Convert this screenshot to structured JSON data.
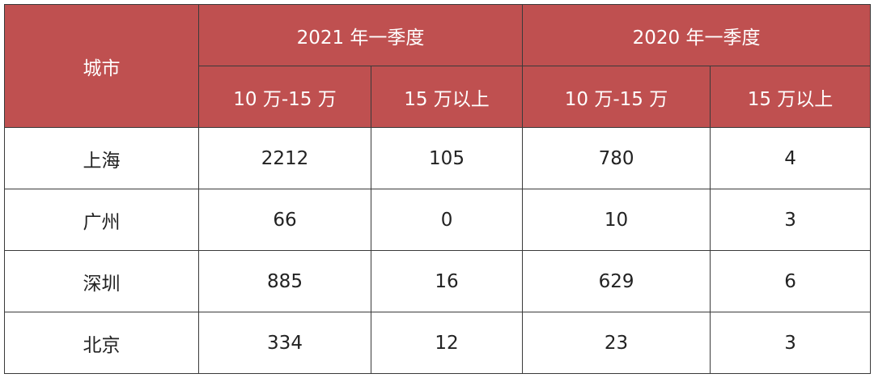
{
  "header": {
    "city": "城市",
    "groups": [
      "2021 年一季度",
      "2020 年一季度"
    ],
    "subheaders": [
      "10 万-15 万",
      "15 万以上",
      "10 万-15 万",
      "15 万以上"
    ]
  },
  "table": {
    "rows": [
      [
        "上海",
        2212,
        105,
        780,
        4
      ],
      [
        "广州",
        66,
        0,
        10,
        3
      ],
      [
        "深圳",
        885,
        16,
        629,
        6
      ],
      [
        "北京",
        334,
        12,
        23,
        3
      ]
    ]
  }
}
